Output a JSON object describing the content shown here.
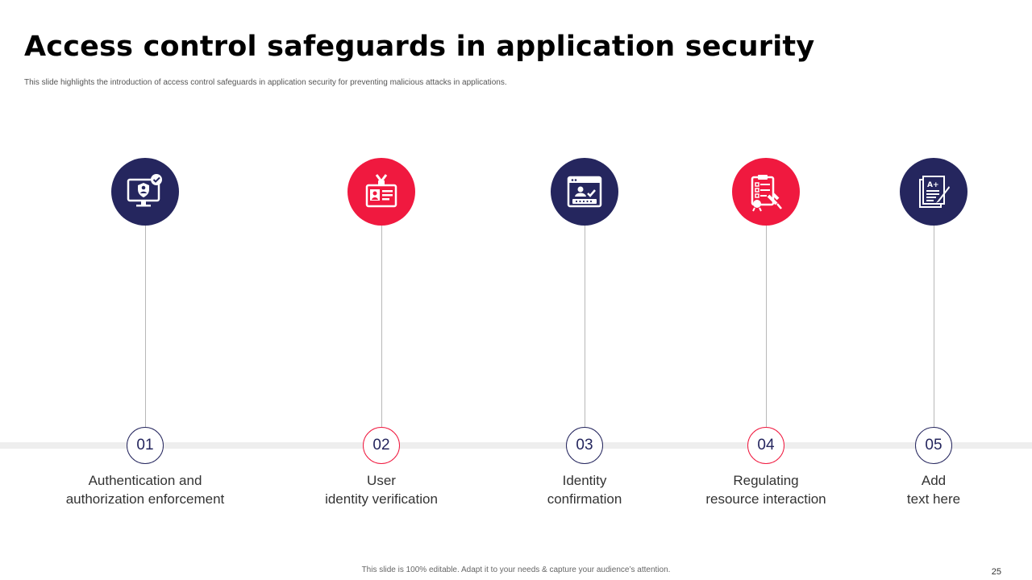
{
  "slide": {
    "title": "Access control safeguards in application security",
    "subtitle": "This slide highlights the introduction of access control safeguards in application security for preventing malicious attacks in applications.",
    "footer": "This slide is 100% editable. Adapt it to your needs & capture your audience’s attention.",
    "page_number": "25"
  },
  "colors": {
    "navy": "#25265e",
    "red": "#f0193f"
  },
  "steps": [
    {
      "number": "01",
      "icon": "monitor-user-check-icon",
      "color": "navy",
      "label_line1": "Authentication and",
      "label_line2": "authorization enforcement"
    },
    {
      "number": "02",
      "icon": "id-badge-icon",
      "color": "red",
      "label_line1": "User",
      "label_line2": "identity verification"
    },
    {
      "number": "03",
      "icon": "login-window-icon",
      "color": "navy",
      "label_line1": "Identity",
      "label_line2": "confirmation"
    },
    {
      "number": "04",
      "icon": "clipboard-approval-icon",
      "color": "red",
      "label_line1": "Regulating",
      "label_line2": "resource interaction"
    },
    {
      "number": "05",
      "icon": "graded-document-icon",
      "color": "navy",
      "label_line1": "Add",
      "label_line2": "text here"
    }
  ]
}
